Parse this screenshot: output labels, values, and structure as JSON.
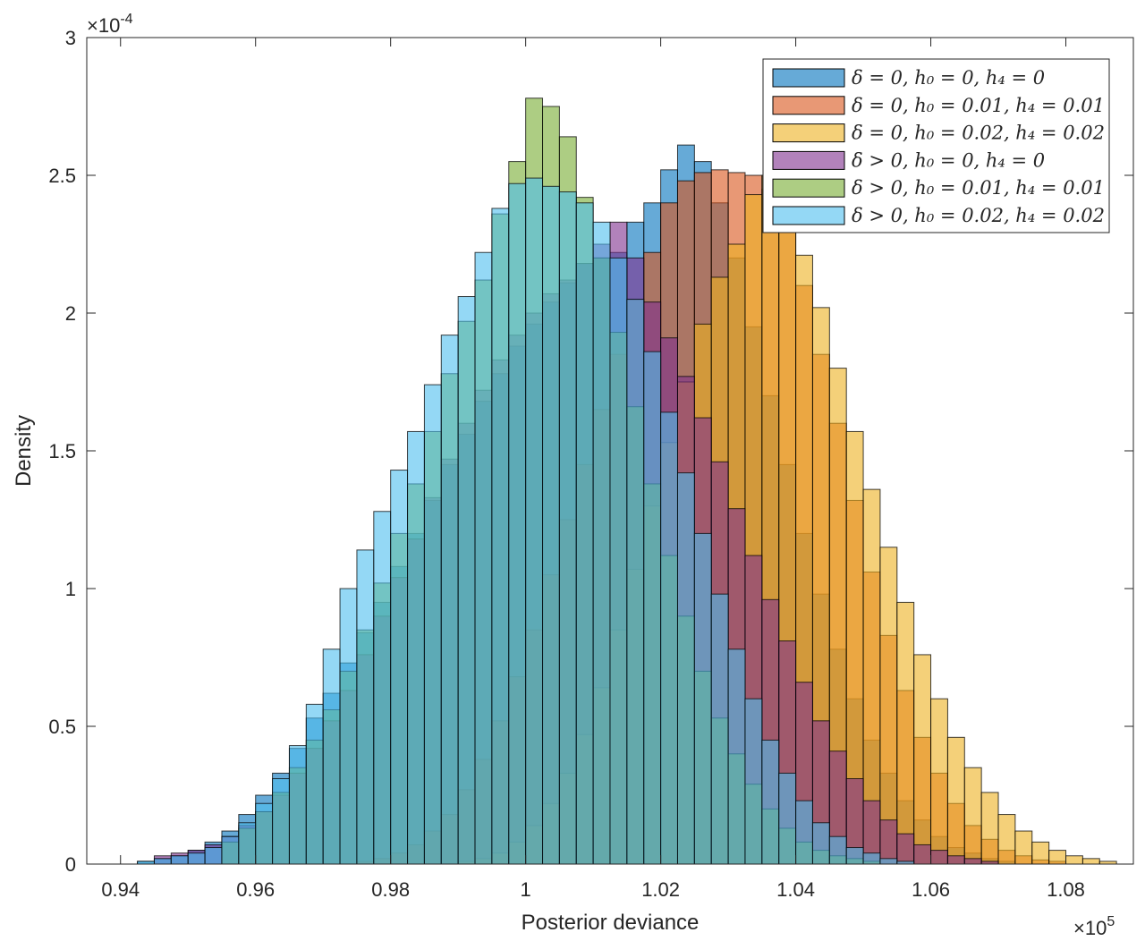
{
  "chart_data": {
    "type": "histogram",
    "xlabel": "Posterior deviance",
    "ylabel": "Density",
    "x_multiplier": "×10",
    "x_multiplier_exp": "5",
    "y_multiplier": "×10",
    "y_multiplier_exp": "-4",
    "xlim": [
      0.935,
      1.09
    ],
    "ylim": [
      0,
      3
    ],
    "x_ticks": [
      0.94,
      0.96,
      0.98,
      1,
      1.02,
      1.04,
      1.06,
      1.08
    ],
    "x_tick_labels": [
      "0.94",
      "0.96",
      "0.98",
      "1",
      "1.02",
      "1.04",
      "1.06",
      "1.08"
    ],
    "y_ticks": [
      0,
      0.5,
      1,
      1.5,
      2,
      2.5,
      3
    ],
    "y_tick_labels": [
      "0",
      "0.5",
      "1",
      "1.5",
      "2",
      "2.5",
      "3"
    ],
    "bin_width": 0.0025,
    "legend_position": "top-right",
    "series": [
      {
        "name": "δ = 0, h₀ = 0, h₄ = 0",
        "color": "#0072BD",
        "bin_start": 0.9425,
        "values": [
          0.01,
          0.02,
          0.03,
          0.05,
          0.08,
          0.12,
          0.18,
          0.25,
          0.33,
          0.42,
          0.53,
          0.62,
          0.73,
          0.84,
          0.95,
          1.08,
          1.2,
          1.32,
          1.45,
          1.56,
          1.68,
          1.78,
          1.88,
          1.96,
          2.04,
          2.11,
          2.18,
          2.2,
          2.22,
          2.33,
          2.4,
          2.52,
          2.61,
          2.55,
          2.4,
          2.2,
          1.95,
          1.7,
          1.45,
          1.2,
          0.98,
          0.78,
          0.6,
          0.45,
          0.33,
          0.23,
          0.16,
          0.1,
          0.06,
          0.04,
          0.02,
          0.01
        ]
      },
      {
        "name": "δ = 0, h₀ = 0.01, h₄ = 0.01",
        "color": "#D95319",
        "bin_start": 0.975,
        "values": [
          0.01,
          0.02,
          0.04,
          0.07,
          0.12,
          0.18,
          0.27,
          0.38,
          0.52,
          0.68,
          0.85,
          1.05,
          1.25,
          1.45,
          1.65,
          1.85,
          2.05,
          2.22,
          2.4,
          2.48,
          2.51,
          2.52,
          2.51,
          2.5,
          2.45,
          2.3,
          2.1,
          1.85,
          1.6,
          1.32,
          1.06,
          0.83,
          0.63,
          0.46,
          0.33,
          0.22,
          0.14,
          0.09,
          0.05,
          0.03,
          0.015,
          0.01
        ]
      },
      {
        "name": "δ = 0, h₀ = 0.02, h₄ = 0.02",
        "color": "#EDB120",
        "bin_start": 0.99,
        "values": [
          0.01,
          0.02,
          0.04,
          0.08,
          0.14,
          0.22,
          0.33,
          0.47,
          0.64,
          0.85,
          1.07,
          1.3,
          1.53,
          1.75,
          1.96,
          2.13,
          2.25,
          2.43,
          2.5,
          2.32,
          2.21,
          2.02,
          1.8,
          1.57,
          1.36,
          1.15,
          0.95,
          0.76,
          0.6,
          0.46,
          0.35,
          0.26,
          0.18,
          0.12,
          0.08,
          0.05,
          0.03,
          0.02,
          0.01
        ]
      },
      {
        "name": "δ > 0, h₀ = 0, h₄ = 0",
        "color": "#7E2F8E",
        "bin_start": 0.945,
        "values": [
          0.03,
          0.04,
          0.05,
          0.07,
          0.1,
          0.14,
          0.19,
          0.25,
          0.33,
          0.42,
          0.52,
          0.63,
          0.76,
          0.9,
          1.04,
          1.18,
          1.33,
          1.47,
          1.6,
          1.72,
          1.83,
          1.92,
          2.0,
          2.07,
          2.12,
          2.18,
          2.25,
          2.33,
          2.2,
          2.04,
          1.91,
          1.77,
          1.62,
          1.46,
          1.29,
          1.12,
          0.96,
          0.81,
          0.66,
          0.52,
          0.41,
          0.31,
          0.23,
          0.16,
          0.11,
          0.07,
          0.05,
          0.03,
          0.02,
          0.01
        ]
      },
      {
        "name": "δ > 0, h₀ = 0.01, h₄ = 0.01",
        "color": "#77AC30",
        "bin_start": 0.955,
        "values": [
          0.08,
          0.13,
          0.19,
          0.26,
          0.35,
          0.45,
          0.56,
          0.7,
          0.85,
          1.02,
          1.2,
          1.38,
          1.57,
          1.78,
          1.97,
          2.12,
          2.36,
          2.55,
          2.78,
          2.75,
          2.64,
          2.42,
          2.2,
          1.93,
          1.66,
          1.38,
          1.12,
          0.9,
          0.7,
          0.53,
          0.4,
          0.29,
          0.2,
          0.13,
          0.08,
          0.05,
          0.03,
          0.02,
          0.01
        ]
      },
      {
        "name": "δ > 0, h₀ = 0.02, h₄ = 0.02",
        "color": "#4DBEEE",
        "bin_start": 0.9425,
        "values": [
          0.01,
          0.02,
          0.03,
          0.04,
          0.06,
          0.1,
          0.15,
          0.22,
          0.31,
          0.43,
          0.58,
          0.78,
          1.0,
          1.14,
          1.28,
          1.43,
          1.57,
          1.74,
          1.92,
          2.06,
          2.22,
          2.38,
          2.47,
          2.49,
          2.46,
          2.44,
          2.4,
          2.33,
          2.2,
          2.05,
          1.86,
          1.64,
          1.42,
          1.2,
          0.98,
          0.78,
          0.6,
          0.45,
          0.33,
          0.23,
          0.15,
          0.1,
          0.06,
          0.04,
          0.02,
          0.01
        ]
      }
    ]
  }
}
